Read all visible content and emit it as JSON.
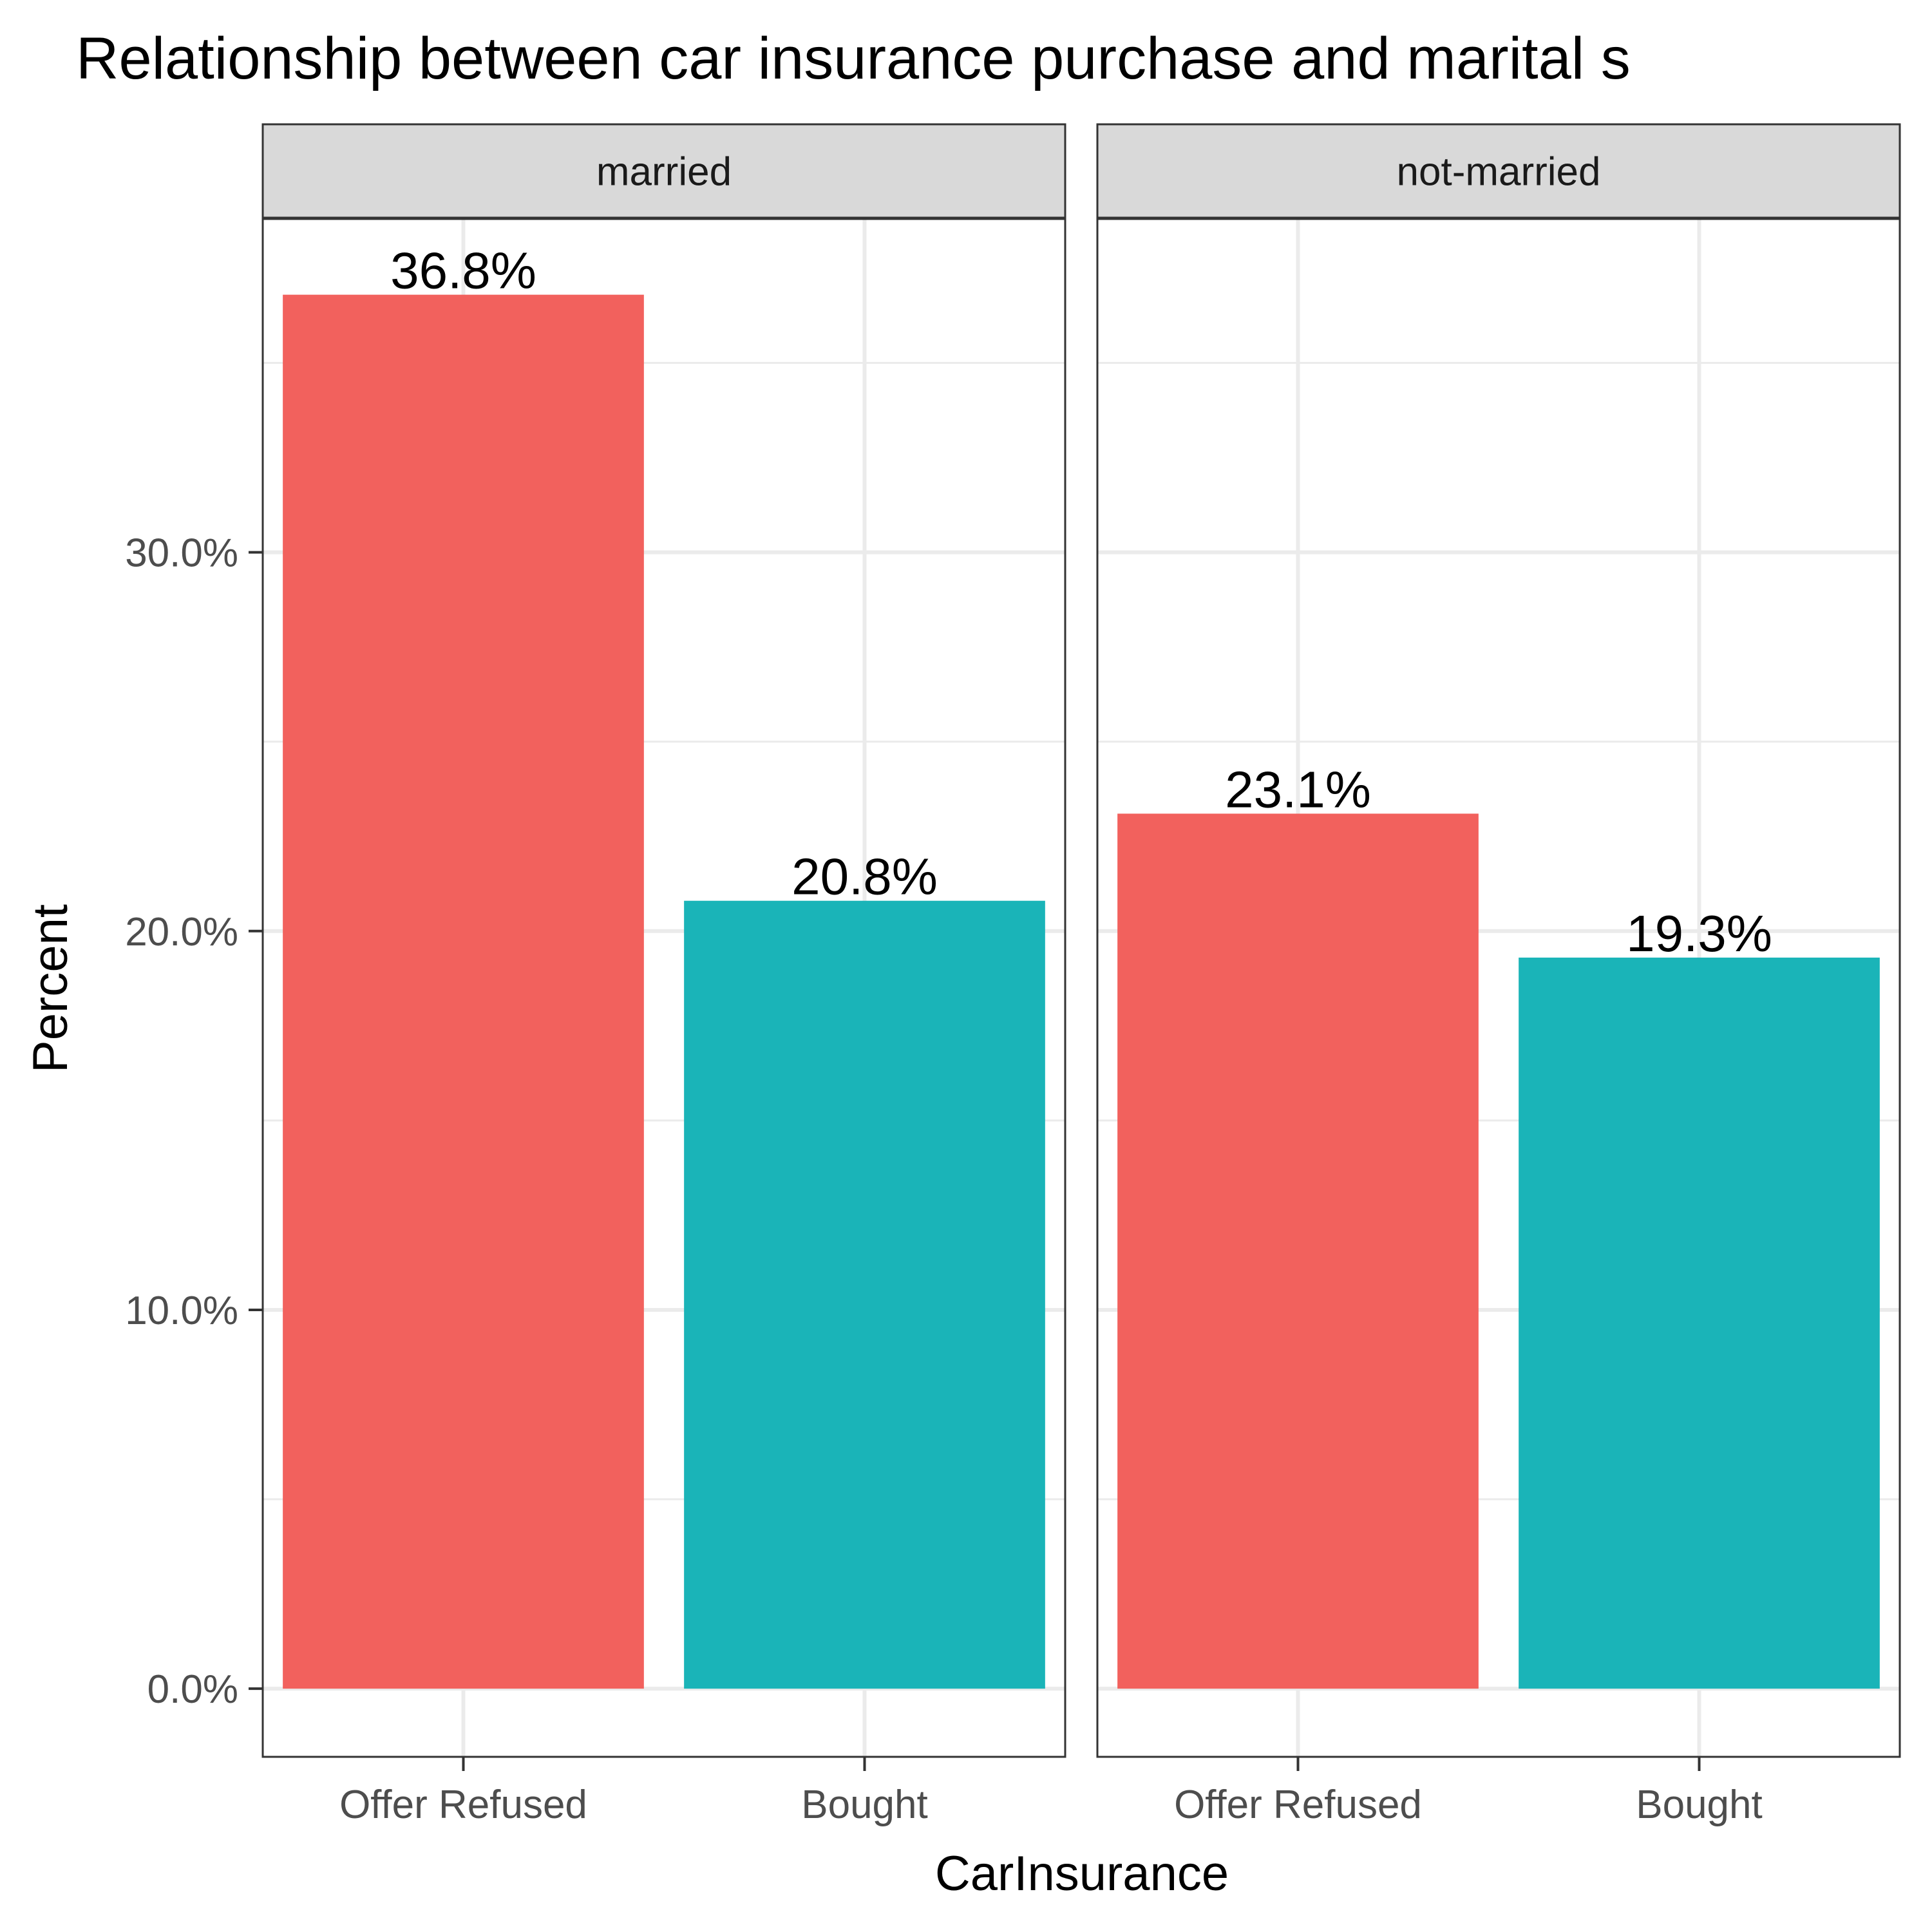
{
  "chart_data": {
    "type": "bar",
    "title": "Relationship between car insurance purchase and marital s",
    "xlabel": "CarInsurance",
    "ylabel": "Percent",
    "ylim": [
      -1.8,
      38.8
    ],
    "yticks": [
      0,
      10,
      20,
      30
    ],
    "ytick_labels": [
      "0.0%",
      "10.0%",
      "20.0%",
      "30.0%"
    ],
    "categories": [
      "Offer Refused",
      "Bought"
    ],
    "category_colors": [
      "#F2615D",
      "#1AB4B8"
    ],
    "panels": [
      {
        "label": "married",
        "values": [
          36.8,
          20.8
        ],
        "value_labels": [
          "36.8%",
          "20.8%"
        ]
      },
      {
        "label": "not-married",
        "values": [
          23.1,
          19.3
        ],
        "value_labels": [
          "23.1%",
          "19.3%"
        ]
      }
    ],
    "grid": true,
    "legend": "none"
  }
}
